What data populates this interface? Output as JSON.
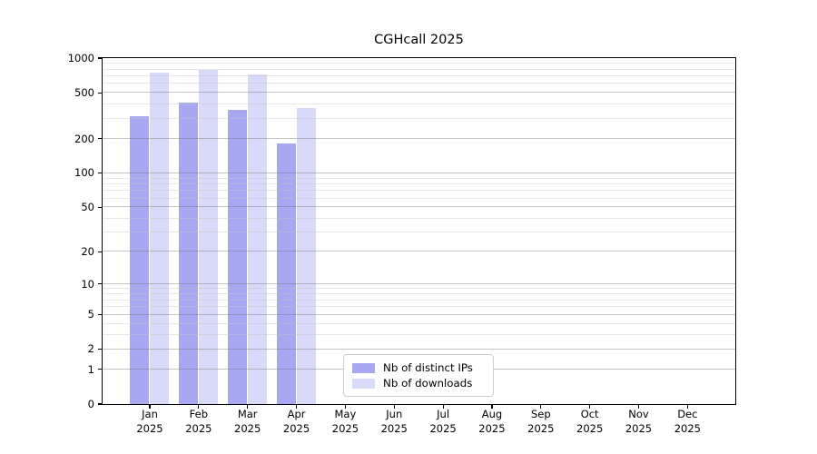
{
  "chart_data": {
    "type": "bar",
    "title": "CGHcall 2025",
    "y_scale": "log1p",
    "ylim": [
      0,
      1000
    ],
    "grid": true,
    "legend_position": "bottom-center",
    "categories": [
      "Jan",
      "Feb",
      "Mar",
      "Apr",
      "May",
      "Jun",
      "Jul",
      "Aug",
      "Sep",
      "Oct",
      "Nov",
      "Dec"
    ],
    "year_label": "2025",
    "series": [
      {
        "name": "Nb of distinct IPs",
        "color": "#a8a8f2",
        "values": [
          313,
          410,
          357,
          182,
          null,
          null,
          null,
          null,
          null,
          null,
          null,
          null
        ]
      },
      {
        "name": "Nb of downloads",
        "color": "#d9d9f9",
        "values": [
          752,
          786,
          725,
          366,
          null,
          null,
          null,
          null,
          null,
          null,
          null,
          null
        ]
      }
    ],
    "y_major_ticks": [
      0,
      1,
      2,
      5,
      10,
      20,
      50,
      100,
      200,
      500,
      1000
    ],
    "y_minor_ticks": [
      3,
      4,
      6,
      7,
      8,
      9,
      30,
      40,
      60,
      70,
      80,
      90,
      300,
      400,
      600,
      700,
      800,
      900
    ]
  },
  "legend": {
    "items": [
      {
        "label": "Nb of distinct IPs",
        "color": "#a8a8f2"
      },
      {
        "label": "Nb of downloads",
        "color": "#d9d9f9"
      }
    ]
  }
}
